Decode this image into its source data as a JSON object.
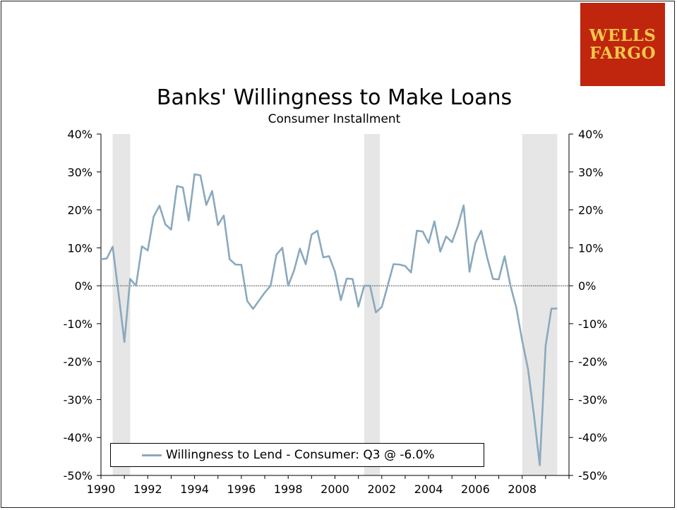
{
  "logo": {
    "line1": "WELLS",
    "line2": "FARGO"
  },
  "colors": {
    "series": "#8aa9bd",
    "recession": "#e6e6e6",
    "logo_bg": "#c0250e",
    "logo_text": "#f2c84b"
  },
  "chart_data": {
    "type": "line",
    "title": "Banks' Willingness to Make Loans",
    "subtitle": "Consumer Installment",
    "y_ticks": [
      "40%",
      "30%",
      "20%",
      "10%",
      "0%",
      "-10%",
      "-20%",
      "-30%",
      "-40%",
      "-50%"
    ],
    "y_tick_values": [
      40,
      30,
      20,
      10,
      0,
      -10,
      -20,
      -30,
      -40,
      -50
    ],
    "x_ticks": [
      "1990",
      "1992",
      "1994",
      "1996",
      "1998",
      "2000",
      "2002",
      "2004",
      "2006",
      "2008"
    ],
    "x_tick_values": [
      1990,
      1992,
      1994,
      1996,
      1998,
      2000,
      2002,
      2004,
      2006,
      2008
    ],
    "xlim": [
      1990,
      2010
    ],
    "ylim": [
      -50,
      40
    ],
    "recessions": [
      [
        1990.5,
        1991.25
      ],
      [
        2001.25,
        2001.92
      ],
      [
        2008.0,
        2009.5
      ]
    ],
    "series": [
      {
        "name": "Willingness to Lend - Consumer: Q3 @ -6.0%",
        "x": [
          1990.0,
          1990.25,
          1990.5,
          1990.75,
          1991.0,
          1991.25,
          1991.5,
          1991.75,
          1992.0,
          1992.25,
          1992.5,
          1992.75,
          1993.0,
          1993.25,
          1993.5,
          1993.75,
          1994.0,
          1994.25,
          1994.5,
          1994.75,
          1995.0,
          1995.25,
          1995.5,
          1995.75,
          1996.0,
          1996.25,
          1996.5,
          1996.75,
          1997.0,
          1997.25,
          1997.5,
          1997.75,
          1998.0,
          1998.25,
          1998.5,
          1998.75,
          1999.0,
          1999.25,
          1999.5,
          1999.75,
          2000.0,
          2000.25,
          2000.5,
          2000.75,
          2001.0,
          2001.25,
          2001.5,
          2001.75,
          2002.0,
          2002.25,
          2002.5,
          2002.75,
          2003.0,
          2003.25,
          2003.5,
          2003.75,
          2004.0,
          2004.25,
          2004.5,
          2004.75,
          2005.0,
          2005.25,
          2005.5,
          2005.75,
          2006.0,
          2006.25,
          2006.5,
          2006.75,
          2007.0,
          2007.25,
          2007.5,
          2007.75,
          2008.0,
          2008.25,
          2008.5,
          2008.75,
          2009.0,
          2009.25,
          2009.5,
          2009.75
        ],
        "values": [
          7.0,
          7.2,
          10.3,
          -2.0,
          -14.8,
          1.8,
          0.0,
          10.4,
          9.3,
          18.2,
          21.1,
          16.2,
          14.8,
          26.3,
          25.9,
          17.2,
          29.4,
          29.1,
          21.3,
          25.0,
          16.0,
          18.5,
          7.0,
          5.6,
          5.5,
          -4.0,
          -6.1,
          -3.9,
          -1.8,
          0.0,
          8.2,
          10.0,
          0.0,
          4.0,
          9.8,
          5.7,
          13.5,
          14.5,
          7.5,
          7.8,
          3.7,
          -3.8,
          1.9,
          1.8,
          -5.5,
          0.0,
          0.0,
          -7.0,
          -5.6,
          0.0,
          5.7,
          5.6,
          5.2,
          3.5,
          14.5,
          14.3,
          11.3,
          17.0,
          9.0,
          13.0,
          11.5,
          15.7,
          21.2,
          3.7,
          11.3,
          14.5,
          7.5,
          1.8,
          1.7,
          7.8,
          0.0,
          -5.8,
          -14.5,
          -22.0,
          -34.0,
          -47.3,
          -15.8,
          -6.0,
          -6.0,
          null
        ]
      }
    ]
  }
}
